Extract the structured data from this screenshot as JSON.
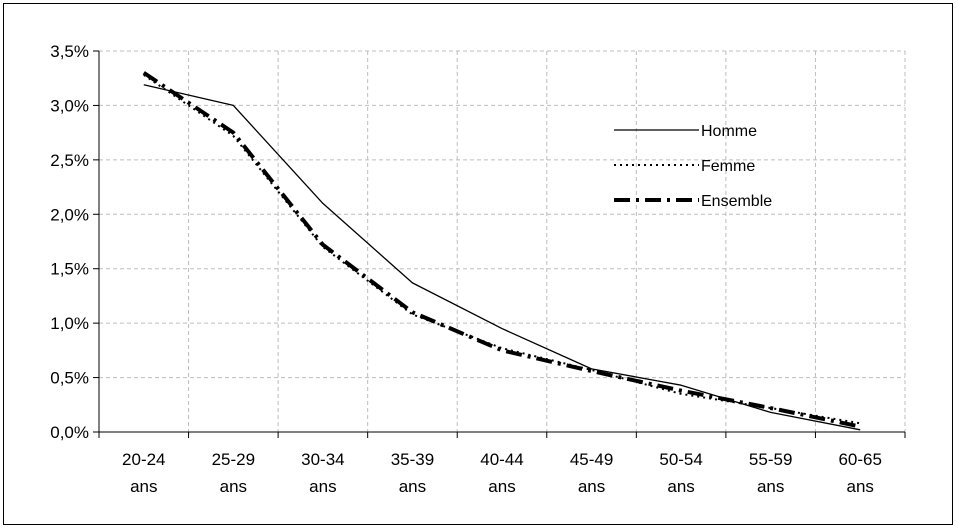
{
  "chart_data": {
    "type": "line",
    "title": "",
    "xlabel": "",
    "ylabel": "",
    "categories": [
      [
        "20-24",
        "ans"
      ],
      [
        "25-29",
        "ans"
      ],
      [
        "30-34",
        "ans"
      ],
      [
        "35-39",
        "ans"
      ],
      [
        "40-44",
        "ans"
      ],
      [
        "45-49",
        "ans"
      ],
      [
        "50-54",
        "ans"
      ],
      [
        "55-59",
        "ans"
      ],
      [
        "60-65",
        "ans"
      ]
    ],
    "yticks": [
      "0,0%",
      "0,5%",
      "1,0%",
      "1,5%",
      "2,0%",
      "2,5%",
      "3,0%",
      "3,5%"
    ],
    "ylim": [
      0,
      3.5
    ],
    "grid": true,
    "legend_position": "top-right",
    "series": [
      {
        "name": "Homme",
        "style": "solid",
        "color": "#000000",
        "values": [
          3.19,
          3.0,
          2.1,
          1.37,
          0.95,
          0.58,
          0.43,
          0.18,
          0.02
        ]
      },
      {
        "name": "Femme",
        "style": "dotted",
        "color": "#000000",
        "values": [
          3.28,
          2.72,
          1.7,
          1.08,
          0.77,
          0.57,
          0.35,
          0.22,
          0.08
        ]
      },
      {
        "name": "Ensemble",
        "style": "dash-dot",
        "color": "#000000",
        "values": [
          3.3,
          2.75,
          1.72,
          1.1,
          0.75,
          0.56,
          0.38,
          0.22,
          0.05
        ]
      }
    ]
  }
}
